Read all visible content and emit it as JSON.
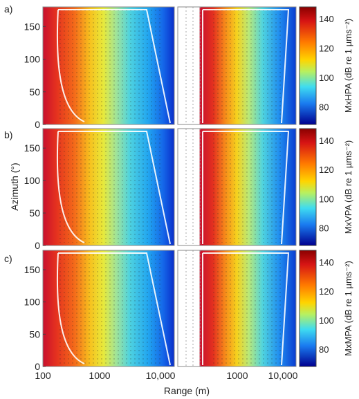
{
  "figure": {
    "panel_letters": [
      "a)",
      "b)",
      "c)"
    ]
  },
  "chart_data": [
    {
      "type": "heatmap",
      "panel": "a)",
      "xlabel": "",
      "ylabel": "",
      "colorbar_label": "MxHPA (dB re 1 µms⁻²)",
      "colorbar_range": [
        68,
        148
      ],
      "colorbar_ticks": [
        "140",
        "120",
        "100",
        "80"
      ],
      "yticks": [
        "0",
        "50",
        "100",
        "150"
      ]
    },
    {
      "type": "heatmap",
      "panel": "b)",
      "xlabel": "",
      "ylabel": "Azimuth (°)",
      "colorbar_label": "MxVPA (dB re 1 µms⁻²)",
      "colorbar_range": [
        68,
        148
      ],
      "colorbar_ticks": [
        "140",
        "120",
        "100",
        "80"
      ],
      "yticks": [
        "0",
        "50",
        "100",
        "150"
      ]
    },
    {
      "type": "heatmap",
      "panel": "c)",
      "xlabel": "Range (m)",
      "ylabel": "",
      "colorbar_label": "MxMPA (dB re 1 µms⁻²)",
      "colorbar_range": [
        68,
        148
      ],
      "colorbar_ticks": [
        "140",
        "120",
        "100",
        "80"
      ],
      "yticks": [
        "0",
        "50",
        "100",
        "150"
      ],
      "xticks_left": [
        "100",
        "1000",
        "10,000"
      ],
      "xticks_right": [
        "1000",
        "10,000"
      ]
    }
  ]
}
